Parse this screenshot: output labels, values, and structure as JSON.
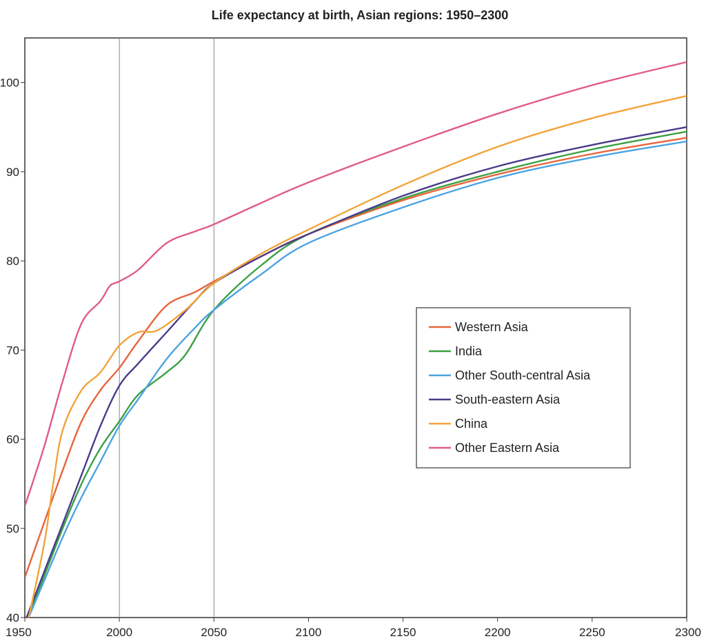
{
  "chart_data": {
    "type": "line",
    "title": "Life expectancy at birth, Asian regions: 1950–2300",
    "xlabel": "",
    "ylabel": "",
    "xlim": [
      1950,
      2300
    ],
    "ylim": [
      40,
      105
    ],
    "x_ticks": [
      1950,
      2000,
      2050,
      2100,
      2150,
      2200,
      2250,
      2300
    ],
    "x_tick_labels": [
      "1950",
      "2000",
      "2050",
      "2100",
      "2150",
      "2200",
      "2250",
      "2300"
    ],
    "y_ticks": [
      40,
      50,
      60,
      70,
      80,
      90,
      100
    ],
    "y_tick_labels": [
      "40",
      "50",
      "60",
      "70",
      "80",
      "90",
      "100"
    ],
    "vertical_reference_lines": [
      2000,
      2050
    ],
    "grid": false,
    "legend_position": "center-right",
    "series": [
      {
        "name": "Western Asia",
        "color": "#e8643a",
        "points": [
          [
            1950,
            44.5
          ],
          [
            1960,
            50.5
          ],
          [
            1970,
            56.5
          ],
          [
            1980,
            62
          ],
          [
            1990,
            65.5
          ],
          [
            2000,
            68
          ],
          [
            2010,
            71
          ],
          [
            2025,
            75
          ],
          [
            2040,
            76.5
          ],
          [
            2050,
            77.7
          ],
          [
            2075,
            80.5
          ],
          [
            2100,
            83
          ],
          [
            2150,
            86.8
          ],
          [
            2200,
            89.7
          ],
          [
            2250,
            92
          ],
          [
            2300,
            93.8
          ]
        ]
      },
      {
        "name": "India",
        "color": "#3aa043",
        "points": [
          [
            1950,
            39
          ],
          [
            1960,
            44.5
          ],
          [
            1970,
            50
          ],
          [
            1980,
            55
          ],
          [
            1990,
            59
          ],
          [
            2000,
            62
          ],
          [
            2010,
            65
          ],
          [
            2025,
            67.5
          ],
          [
            2035,
            69.5
          ],
          [
            2050,
            74.5
          ],
          [
            2075,
            79.5
          ],
          [
            2100,
            83
          ],
          [
            2150,
            87
          ],
          [
            2200,
            90
          ],
          [
            2250,
            92.5
          ],
          [
            2300,
            94.5
          ]
        ]
      },
      {
        "name": "Other South-central Asia",
        "color": "#4ba3e3",
        "points": [
          [
            1950,
            39
          ],
          [
            1960,
            44
          ],
          [
            1970,
            49
          ],
          [
            1980,
            53.5
          ],
          [
            1990,
            57.5
          ],
          [
            2000,
            61.5
          ],
          [
            2010,
            64.5
          ],
          [
            2025,
            69
          ],
          [
            2040,
            72.5
          ],
          [
            2050,
            74.5
          ],
          [
            2075,
            78.5
          ],
          [
            2100,
            82
          ],
          [
            2150,
            86
          ],
          [
            2200,
            89.3
          ],
          [
            2250,
            91.6
          ],
          [
            2300,
            93.4
          ]
        ]
      },
      {
        "name": "South-eastern Asia",
        "color": "#4a3b8a",
        "points": [
          [
            1950,
            39.5
          ],
          [
            1960,
            45
          ],
          [
            1970,
            50.5
          ],
          [
            1980,
            56
          ],
          [
            1990,
            61.5
          ],
          [
            2000,
            66
          ],
          [
            2010,
            68.5
          ],
          [
            2025,
            72
          ],
          [
            2040,
            75.5
          ],
          [
            2050,
            77.5
          ],
          [
            2075,
            80.5
          ],
          [
            2100,
            83
          ],
          [
            2150,
            87.3
          ],
          [
            2200,
            90.6
          ],
          [
            2250,
            93
          ],
          [
            2300,
            95
          ]
        ]
      },
      {
        "name": "China",
        "color": "#f2a33a",
        "points": [
          [
            1950,
            38
          ],
          [
            1960,
            48
          ],
          [
            1965,
            55
          ],
          [
            1970,
            61
          ],
          [
            1980,
            65.5
          ],
          [
            1990,
            67.5
          ],
          [
            2000,
            70.5
          ],
          [
            2010,
            72
          ],
          [
            2020,
            72.2
          ],
          [
            2035,
            74.5
          ],
          [
            2050,
            77.5
          ],
          [
            2075,
            80.8
          ],
          [
            2100,
            83.5
          ],
          [
            2150,
            88.5
          ],
          [
            2200,
            92.8
          ],
          [
            2250,
            96
          ],
          [
            2300,
            98.5
          ]
        ]
      },
      {
        "name": "Other Eastern Asia",
        "color": "#e05a8a",
        "points": [
          [
            1950,
            52.5
          ],
          [
            1960,
            59
          ],
          [
            1970,
            66.5
          ],
          [
            1980,
            73
          ],
          [
            1990,
            75.5
          ],
          [
            1995,
            77.2
          ],
          [
            2000,
            77.7
          ],
          [
            2010,
            79
          ],
          [
            2025,
            82
          ],
          [
            2040,
            83.3
          ],
          [
            2050,
            84.1
          ],
          [
            2075,
            86.5
          ],
          [
            2100,
            88.8
          ],
          [
            2150,
            92.8
          ],
          [
            2200,
            96.5
          ],
          [
            2250,
            99.7
          ],
          [
            2300,
            102.3
          ]
        ]
      }
    ]
  }
}
